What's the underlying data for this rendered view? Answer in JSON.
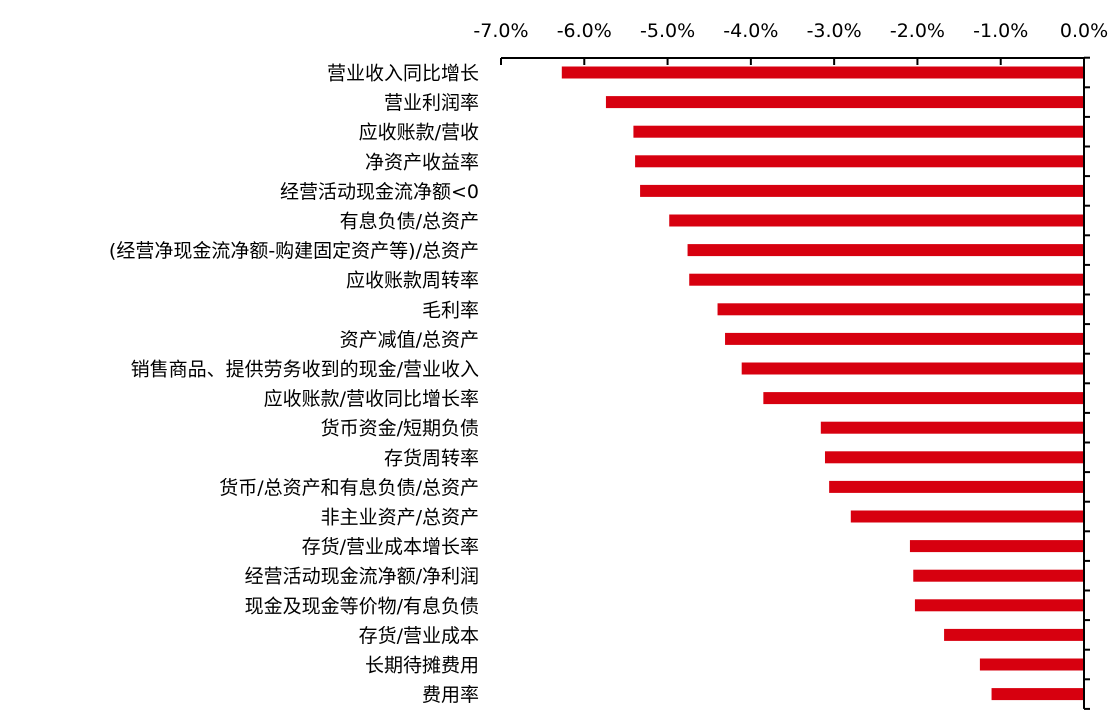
{
  "chart_data": {
    "type": "bar",
    "orientation": "horizontal",
    "title": "",
    "xlabel": "",
    "ylabel": "",
    "xlim": [
      -0.07,
      0.0
    ],
    "x_axis_position": "top",
    "value_format": "percent-1-decimal",
    "grid": false,
    "legend": "none",
    "bar_color": "#d7000f",
    "x_ticks": [
      "-7.0%",
      "-6.0%",
      "-5.0%",
      "-4.0%",
      "-3.0%",
      "-2.0%",
      "-1.0%",
      "0.0%"
    ],
    "x_tick_values": [
      -0.07,
      -0.06,
      -0.05,
      -0.04,
      -0.03,
      -0.02,
      -0.01,
      0.0
    ],
    "categories": [
      "营业收入同比增长",
      "营业利润率",
      "应收账款/营收",
      "净资产收益率",
      "经营活动现金流净额<0",
      "有息负债/总资产",
      "(经营净现金流净额-购建固定资产等)/总资产",
      "应收账款周转率",
      "毛利率",
      "资产减值/总资产",
      "销售商品、提供劳务收到的现金/营业收入",
      "应收账款/营收同比增长率",
      "货币资金/短期负债",
      "存货周转率",
      "货币/总资产和有息负债/总资产",
      "非主业资产/总资产",
      "存货/营业成本增长率",
      "经营活动现金流净额/净利润",
      "现金及现金等价物/有息负债",
      "存货/营业成本",
      "长期待摊费用",
      "费用率"
    ],
    "values": [
      -0.0627,
      -0.0574,
      -0.0541,
      -0.0539,
      -0.0533,
      -0.0498,
      -0.0476,
      -0.0474,
      -0.044,
      -0.0431,
      -0.0411,
      -0.0385,
      -0.0316,
      -0.0311,
      -0.0306,
      -0.028,
      -0.0209,
      -0.0205,
      -0.0203,
      -0.0168,
      -0.0125,
      -0.0111
    ]
  }
}
